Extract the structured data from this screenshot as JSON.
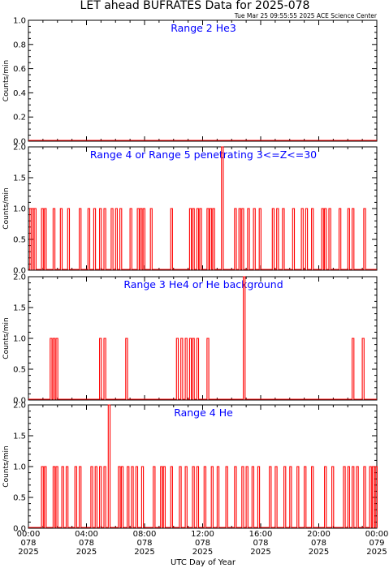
{
  "header": {
    "title": "LET ahead BUFRATES Data for 2025-078",
    "timestamp": "Tue Mar 25 09:55:55 2025 ACE Science Center"
  },
  "footer": {
    "xlabel": "UTC Day of Year"
  },
  "x_tick_labels": [
    [
      "00:00",
      "078",
      "2025"
    ],
    [
      "04:00",
      "078",
      "2025"
    ],
    [
      "08:00",
      "078",
      "2025"
    ],
    [
      "12:00",
      "078",
      "2025"
    ],
    [
      "16:00",
      "078",
      "2025"
    ],
    [
      "20:00",
      "078",
      "2025"
    ],
    [
      "00:00",
      "079",
      "2025"
    ]
  ],
  "colors": {
    "data": "#ff0000",
    "panel_title": "#0000ff",
    "axes": "#000000"
  },
  "chart_data": [
    {
      "type": "line",
      "title": "Range 2 He3",
      "ylabel": "Counts/min",
      "ylim": [
        0,
        1.0
      ],
      "yticks": [
        "0.0",
        "0.2",
        "0.4",
        "0.6",
        "0.8",
        "1.0"
      ],
      "xlim_hours": [
        0,
        24
      ],
      "series": [
        {
          "values_note": "",
          "spikes": []
        }
      ]
    },
    {
      "type": "line",
      "title": "Range 4 or Range 5 penetrating 3<=Z<=30",
      "ylabel": "Counts/min",
      "ylim": [
        0,
        2.0
      ],
      "yticks": [
        "0.0",
        "0.5",
        "1.0",
        "1.5",
        "2.0"
      ],
      "xlim_hours": [
        0,
        24
      ],
      "series": [
        {
          "spikes": [
            [
              0.1,
              1
            ],
            [
              0.25,
              1
            ],
            [
              0.4,
              1
            ],
            [
              0.9,
              1
            ],
            [
              1.1,
              1
            ],
            [
              1.7,
              1
            ],
            [
              2.2,
              1
            ],
            [
              2.7,
              1
            ],
            [
              3.5,
              1
            ],
            [
              4.1,
              1
            ],
            [
              4.5,
              1
            ],
            [
              4.9,
              1
            ],
            [
              5.2,
              1
            ],
            [
              5.7,
              1
            ],
            [
              6.0,
              1
            ],
            [
              6.3,
              1
            ],
            [
              7.0,
              1
            ],
            [
              7.5,
              1
            ],
            [
              7.7,
              1
            ],
            [
              7.9,
              1
            ],
            [
              8.4,
              1
            ],
            [
              9.8,
              1
            ],
            [
              11.1,
              1
            ],
            [
              11.3,
              1
            ],
            [
              11.6,
              1
            ],
            [
              11.8,
              1
            ],
            [
              12.3,
              1
            ],
            [
              12.5,
              1
            ],
            [
              12.7,
              1
            ],
            [
              13.3,
              2
            ],
            [
              14.2,
              1
            ],
            [
              14.5,
              1
            ],
            [
              14.7,
              1
            ],
            [
              15.1,
              1
            ],
            [
              15.5,
              1
            ],
            [
              15.9,
              1
            ],
            [
              16.8,
              1
            ],
            [
              17.1,
              1
            ],
            [
              17.5,
              1
            ],
            [
              18.2,
              1
            ],
            [
              18.8,
              1
            ],
            [
              19.1,
              1
            ],
            [
              19.5,
              1
            ],
            [
              20.2,
              1
            ],
            [
              20.4,
              1
            ],
            [
              20.7,
              1
            ],
            [
              21.4,
              1
            ],
            [
              22.0,
              1
            ],
            [
              22.3,
              1
            ],
            [
              23.1,
              1
            ]
          ]
        }
      ]
    },
    {
      "type": "line",
      "title": "Range 3 He4 or He background",
      "ylabel": "Counts/min",
      "ylim": [
        0,
        2.0
      ],
      "yticks": [
        "0.0",
        "0.5",
        "1.0",
        "1.5",
        "2.0"
      ],
      "xlim_hours": [
        0,
        24
      ],
      "series": [
        {
          "spikes": [
            [
              1.5,
              1
            ],
            [
              1.7,
              1
            ],
            [
              1.9,
              1
            ],
            [
              4.9,
              1
            ],
            [
              5.2,
              1
            ],
            [
              6.7,
              1
            ],
            [
              10.2,
              1
            ],
            [
              10.5,
              1
            ],
            [
              10.8,
              1
            ],
            [
              11.1,
              1
            ],
            [
              11.3,
              1
            ],
            [
              11.6,
              1
            ],
            [
              12.3,
              1
            ],
            [
              14.8,
              2
            ],
            [
              22.3,
              1
            ],
            [
              23.0,
              1
            ]
          ]
        }
      ]
    },
    {
      "type": "line",
      "title": "Range 4 He",
      "ylabel": "Counts/min",
      "ylim": [
        0,
        2.0
      ],
      "yticks": [
        "0.0",
        "0.5",
        "1.0",
        "1.5",
        "2.0"
      ],
      "xlim_hours": [
        0,
        24
      ],
      "series": [
        {
          "spikes": [
            [
              0.9,
              1
            ],
            [
              1.1,
              1
            ],
            [
              1.7,
              1
            ],
            [
              1.9,
              1
            ],
            [
              2.3,
              1
            ],
            [
              2.6,
              1
            ],
            [
              3.2,
              1
            ],
            [
              3.5,
              1
            ],
            [
              4.3,
              1
            ],
            [
              4.6,
              1
            ],
            [
              4.9,
              1
            ],
            [
              5.2,
              1
            ],
            [
              5.5,
              2
            ],
            [
              6.2,
              1
            ],
            [
              6.4,
              1
            ],
            [
              6.8,
              1
            ],
            [
              7.1,
              1
            ],
            [
              7.4,
              1
            ],
            [
              7.8,
              1
            ],
            [
              8.6,
              1
            ],
            [
              9.1,
              1
            ],
            [
              9.3,
              1
            ],
            [
              9.8,
              1
            ],
            [
              10.4,
              1
            ],
            [
              10.8,
              1
            ],
            [
              11.3,
              1
            ],
            [
              11.6,
              1
            ],
            [
              12.1,
              1
            ],
            [
              12.6,
              1
            ],
            [
              13.0,
              1
            ],
            [
              13.6,
              1
            ],
            [
              14.2,
              1
            ],
            [
              14.7,
              1
            ],
            [
              15.0,
              1
            ],
            [
              15.4,
              1
            ],
            [
              15.8,
              1
            ],
            [
              16.6,
              1
            ],
            [
              17.0,
              1
            ],
            [
              17.6,
              1
            ],
            [
              18.0,
              1
            ],
            [
              18.5,
              1
            ],
            [
              19.0,
              1
            ],
            [
              19.5,
              1
            ],
            [
              20.4,
              1
            ],
            [
              20.9,
              1
            ],
            [
              21.7,
              1
            ],
            [
              22.0,
              1
            ],
            [
              22.3,
              1
            ],
            [
              22.6,
              1
            ],
            [
              23.1,
              1
            ],
            [
              23.5,
              1
            ],
            [
              23.7,
              1
            ],
            [
              23.9,
              1
            ]
          ]
        }
      ]
    }
  ]
}
